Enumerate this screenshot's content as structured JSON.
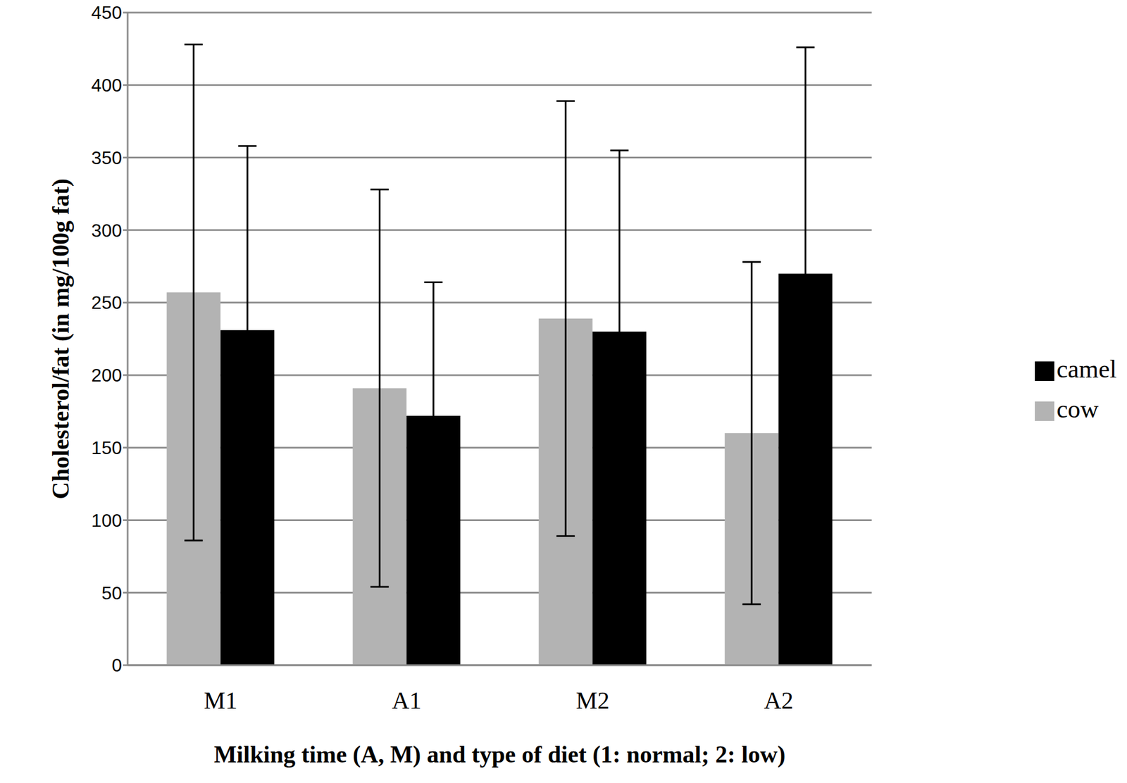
{
  "chart_data": {
    "type": "bar",
    "x_label": "Milking time (A, M) and type of diet (1: normal; 2: low)",
    "y_label": "Cholesterol/fat (in mg/100g fat)",
    "categories": [
      "M1",
      "A1",
      "M2",
      "A2"
    ],
    "series": [
      {
        "name": "cow",
        "color": "#b3b3b3",
        "values": [
          257,
          191,
          239,
          160
        ],
        "errors": [
          171,
          137,
          150,
          118
        ]
      },
      {
        "name": "camel",
        "color": "#000000",
        "values": [
          231,
          172,
          230,
          270
        ],
        "errors": [
          127,
          92,
          125,
          156
        ]
      }
    ],
    "ylim": [
      0,
      450
    ],
    "yticks": [
      0,
      50,
      100,
      150,
      200,
      250,
      300,
      350,
      400,
      450
    ],
    "grid": true,
    "legend": "right"
  }
}
